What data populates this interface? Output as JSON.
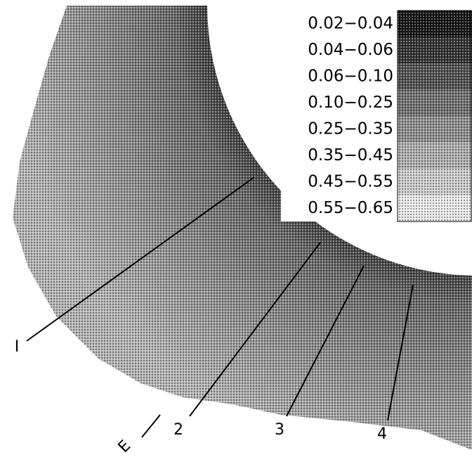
{
  "legend": {
    "items": [
      "0.02−0.04",
      "0.04−0.06",
      "0.06−0.10",
      "0.10−0.25",
      "0.25−0.35",
      "0.35−0.45",
      "0.45−0.55",
      "0.55−0.65"
    ]
  },
  "labels": {
    "line_1": "I",
    "line_2": "2",
    "line_3": "3",
    "line_4": "4",
    "edge": "E"
  }
}
